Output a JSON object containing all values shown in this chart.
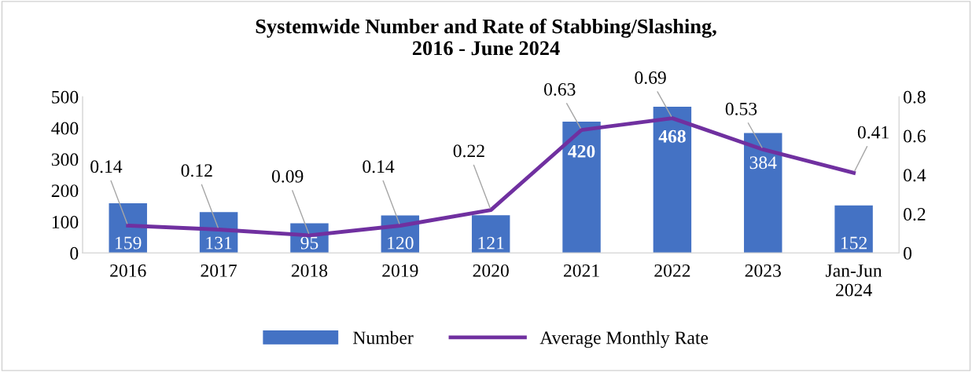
{
  "chart_data": {
    "type": "bar",
    "title": "Systemwide Number and Rate of Stabbing/Slashing,\n2016 - June 2024",
    "categories": [
      "2016",
      "2017",
      "2018",
      "2019",
      "2020",
      "2021",
      "2022",
      "2023",
      "Jan-Jun\n2024"
    ],
    "series": [
      {
        "name": "Number",
        "color": "#4472c4",
        "values": [
          159,
          131,
          95,
          120,
          121,
          420,
          468,
          384,
          152
        ]
      },
      {
        "name": "Average Monthly Rate",
        "type": "line",
        "axis": "y2",
        "color": "#7030a0",
        "values": [
          0.14,
          0.12,
          0.09,
          0.14,
          0.22,
          0.63,
          0.69,
          0.53,
          0.41
        ]
      }
    ],
    "ylim": [
      0,
      500
    ],
    "yticks": [
      0,
      100,
      200,
      300,
      400,
      500
    ],
    "y2lim": [
      0,
      0.8
    ],
    "y2ticks": [
      0,
      {
        "value": 0.2,
        "label": "0.2"
      },
      {
        "value": 0.4,
        "label": "0.4"
      },
      {
        "value": 0.6,
        "label": "0.6"
      },
      {
        "value": 0.8,
        "label": "0.8"
      }
    ],
    "data_labels": true,
    "grid": false,
    "legend": "bottom",
    "marker": "none",
    "line_style": "solid"
  }
}
